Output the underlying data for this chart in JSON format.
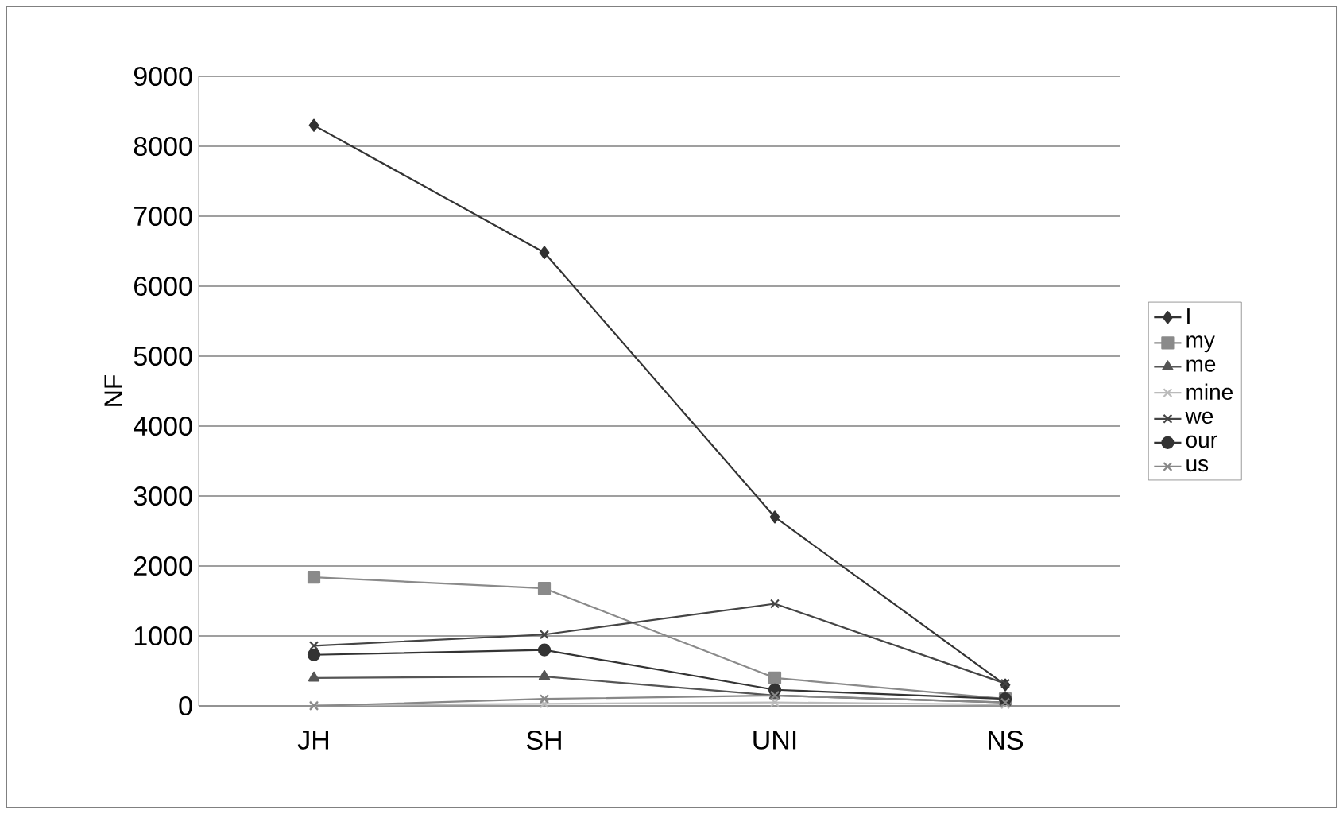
{
  "chart_data": {
    "type": "line",
    "ylabel": "NF",
    "categories": [
      "JH",
      "SH",
      "UNI",
      "NS"
    ],
    "ylim": [
      0,
      9000
    ],
    "yticks": [
      0,
      1000,
      2000,
      3000,
      4000,
      5000,
      6000,
      7000,
      8000,
      9000
    ],
    "grid": "y",
    "legend": "right",
    "line_style": "solid",
    "series": [
      {
        "name": "I",
        "color": "#333333",
        "marker": "diamond",
        "values": [
          8300,
          6480,
          2700,
          300
        ]
      },
      {
        "name": "my",
        "color": "#8a8a8a",
        "marker": "square",
        "values": [
          1840,
          1680,
          400,
          100
        ]
      },
      {
        "name": "me",
        "color": "#555555",
        "marker": "triangle",
        "values": [
          400,
          420,
          150,
          50
        ]
      },
      {
        "name": "mine",
        "color": "#bbbbbb",
        "marker": "cross",
        "values": [
          10,
          30,
          50,
          20
        ]
      },
      {
        "name": "we",
        "color": "#444444",
        "marker": "cross",
        "values": [
          860,
          1020,
          1460,
          320
        ]
      },
      {
        "name": "our",
        "color": "#333333",
        "marker": "circle",
        "values": [
          730,
          800,
          230,
          100
        ]
      },
      {
        "name": "us",
        "color": "#888888",
        "marker": "cross",
        "values": [
          0,
          100,
          150,
          50
        ]
      }
    ]
  }
}
